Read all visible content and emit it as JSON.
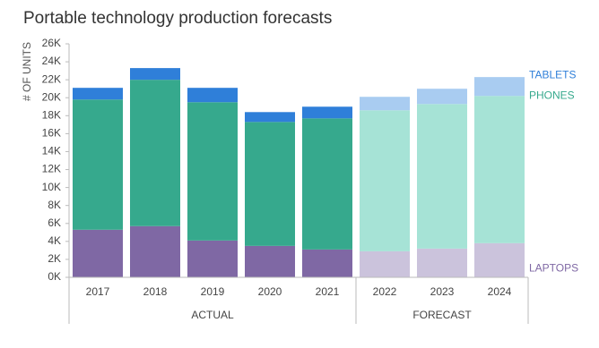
{
  "chart_data": {
    "type": "stacked_bar",
    "title": "Portable technology production forecasts",
    "y_label": "# OF UNITS",
    "categories": [
      "2017",
      "2018",
      "2019",
      "2020",
      "2021",
      "2022",
      "2023",
      "2024"
    ],
    "category_groups": [
      "ACTUAL",
      "ACTUAL",
      "ACTUAL",
      "ACTUAL",
      "ACTUAL",
      "FORECAST",
      "FORECAST",
      "FORECAST"
    ],
    "series": [
      {
        "name": "LAPTOPS",
        "color": "#7f68a4",
        "colors": [
          "#7f68a4",
          "#7f68a4",
          "#7f68a4",
          "#7f68a4",
          "#7f68a4",
          "#cbc3dc",
          "#cbc3dc",
          "#cbc3dc"
        ],
        "values": [
          5300,
          5700,
          4100,
          3500,
          3100,
          2900,
          3200,
          3800
        ]
      },
      {
        "name": "PHONES",
        "color": "#36a98d",
        "colors": [
          "#36a98d",
          "#36a98d",
          "#36a98d",
          "#36a98d",
          "#36a98d",
          "#a6e3d6",
          "#a6e3d6",
          "#a6e3d6"
        ],
        "values": [
          14500,
          16300,
          15400,
          13800,
          14600,
          15700,
          16100,
          16400
        ]
      },
      {
        "name": "TABLETS",
        "color": "#2f7fd9",
        "colors": [
          "#2f7fd9",
          "#2f7fd9",
          "#2f7fd9",
          "#2f7fd9",
          "#2f7fd9",
          "#a9ccf1",
          "#a9ccf1",
          "#a9ccf1"
        ],
        "values": [
          1300,
          1300,
          1600,
          1100,
          1300,
          1500,
          1700,
          2100
        ]
      }
    ],
    "ylim": [
      0,
      26000
    ],
    "yticks": [
      {
        "value": 0,
        "label": "0K"
      },
      {
        "value": 2000,
        "label": "2K"
      },
      {
        "value": 4000,
        "label": "4K"
      },
      {
        "value": 6000,
        "label": "6K"
      },
      {
        "value": 8000,
        "label": "8K"
      },
      {
        "value": 10000,
        "label": "10K"
      },
      {
        "value": 12000,
        "label": "12K"
      },
      {
        "value": 14000,
        "label": "14K"
      },
      {
        "value": 16000,
        "label": "16K"
      },
      {
        "value": 18000,
        "label": "18K"
      },
      {
        "value": 20000,
        "label": "20K"
      },
      {
        "value": 22000,
        "label": "22K"
      },
      {
        "value": 24000,
        "label": "24K"
      },
      {
        "value": 26000,
        "label": "26K"
      }
    ]
  }
}
